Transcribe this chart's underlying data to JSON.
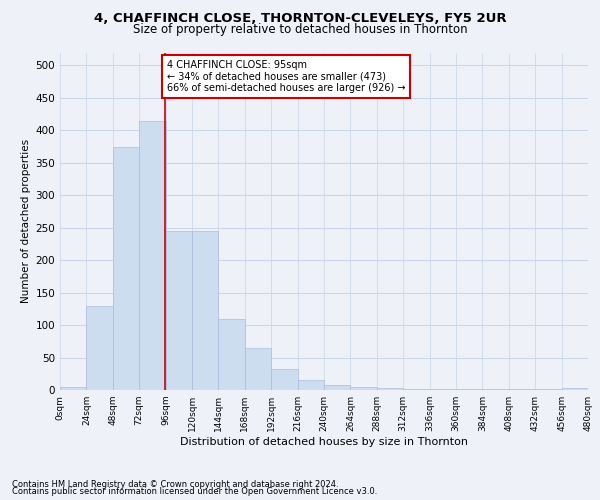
{
  "title": "4, CHAFFINCH CLOSE, THORNTON-CLEVELEYS, FY5 2UR",
  "subtitle": "Size of property relative to detached houses in Thornton",
  "xlabel": "Distribution of detached houses by size in Thornton",
  "ylabel": "Number of detached properties",
  "footnote1": "Contains HM Land Registry data © Crown copyright and database right 2024.",
  "footnote2": "Contains public sector information licensed under the Open Government Licence v3.0.",
  "bar_color": "#ccddf0",
  "bar_edge_color": "#aabbdd",
  "grid_color": "#c8d4e8",
  "annotation_text": "4 CHAFFINCH CLOSE: 95sqm\n← 34% of detached houses are smaller (473)\n66% of semi-detached houses are larger (926) →",
  "property_line_x": 95,
  "property_line_color": "#cc0000",
  "bin_width": 24,
  "bins_start": 0,
  "num_bins": 20,
  "bar_heights": [
    5,
    130,
    375,
    415,
    245,
    245,
    110,
    65,
    32,
    15,
    8,
    5,
    3,
    2,
    2,
    1,
    1,
    1,
    1,
    3
  ],
  "xlim": [
    0,
    480
  ],
  "ylim": [
    0,
    520
  ],
  "yticks": [
    0,
    50,
    100,
    150,
    200,
    250,
    300,
    350,
    400,
    450,
    500
  ],
  "xtick_labels": [
    "0sqm",
    "24sqm",
    "48sqm",
    "72sqm",
    "96sqm",
    "120sqm",
    "144sqm",
    "168sqm",
    "192sqm",
    "216sqm",
    "240sqm",
    "264sqm",
    "288sqm",
    "312sqm",
    "336sqm",
    "360sqm",
    "384sqm",
    "408sqm",
    "432sqm",
    "456sqm",
    "480sqm"
  ],
  "annotation_box_color": "white",
  "annotation_box_edge": "#cc0000",
  "background_color": "#eef2f8",
  "title_fontsize": 9.5,
  "subtitle_fontsize": 8.5
}
